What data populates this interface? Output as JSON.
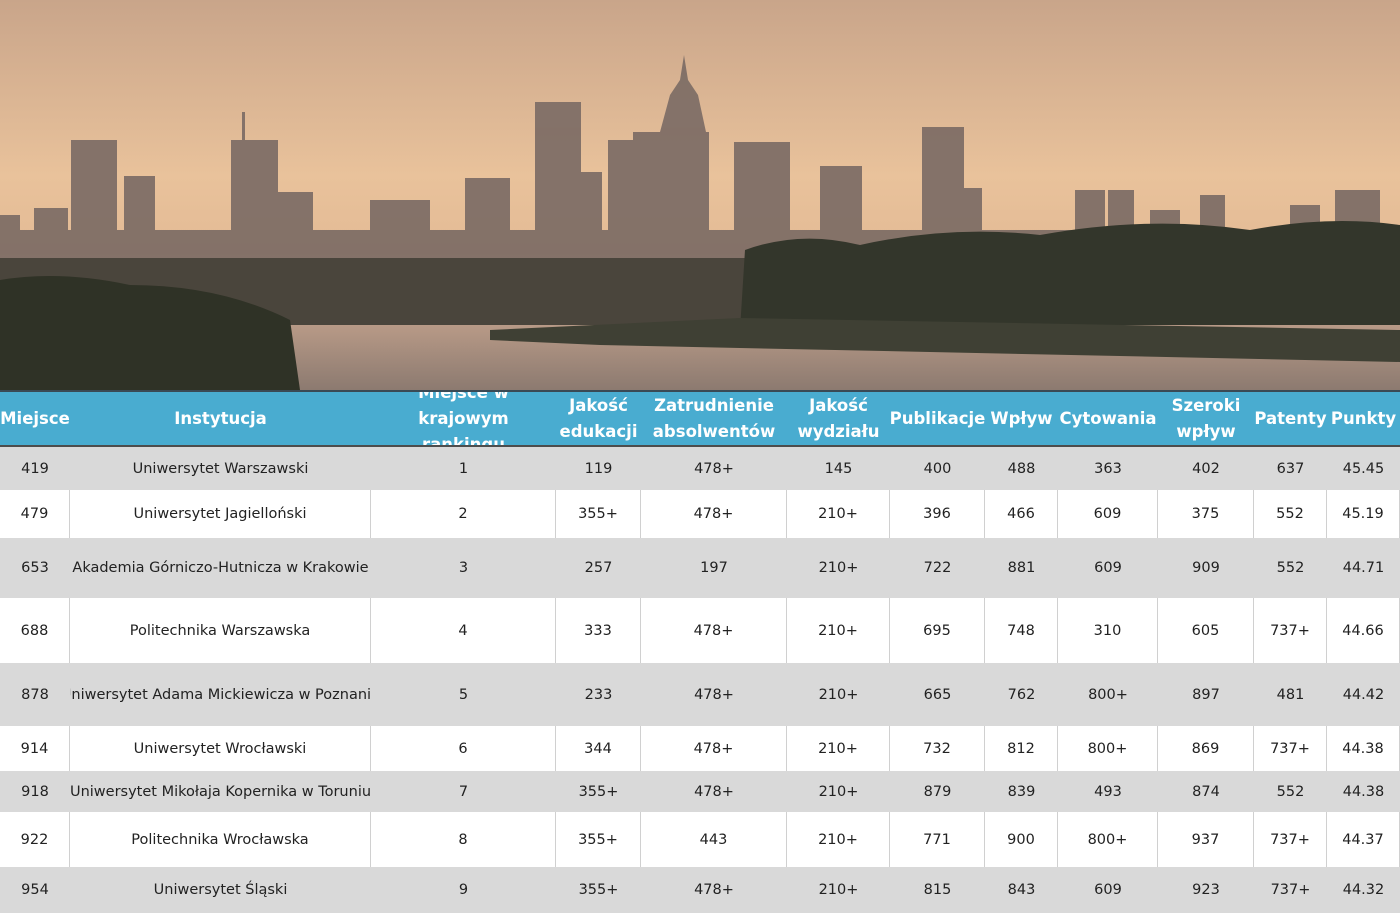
{
  "table": {
    "header": [
      "Miejsce",
      "Instytucja",
      "Miejsce w krajowym rankingu",
      "Jakość edukacji",
      "Zatrudnienie absolwentów",
      "Jakość wydziału",
      "Publikacje",
      "Wpływ",
      "Cytowania",
      "Szeroki wpływ",
      "Patenty",
      "Punkty"
    ],
    "rows": [
      [
        "419",
        "Uniwersytet Warszawski",
        "1",
        "119",
        "478+",
        "145",
        "400",
        "488",
        "363",
        "402",
        "637",
        "45.45"
      ],
      [
        "479",
        "Uniwersytet Jagielloński",
        "2",
        "355+",
        "478+",
        "210+",
        "396",
        "466",
        "609",
        "375",
        "552",
        "45.19"
      ],
      [
        "653",
        "Akademia Górniczo-Hutnicza w Krakowie",
        "3",
        "257",
        "197",
        "210+",
        "722",
        "881",
        "609",
        "909",
        "552",
        "44.71"
      ],
      [
        "688",
        "Politechnika Warszawska",
        "4",
        "333",
        "478+",
        "210+",
        "695",
        "748",
        "310",
        "605",
        "737+",
        "44.66"
      ],
      [
        "878",
        "Uniwersytet Adama Mickiewicza w Poznaniu",
        "5",
        "233",
        "478+",
        "210+",
        "665",
        "762",
        "800+",
        "897",
        "481",
        "44.42"
      ],
      [
        "914",
        "Uniwersytet Wrocławski",
        "6",
        "344",
        "478+",
        "210+",
        "732",
        "812",
        "800+",
        "869",
        "737+",
        "44.38"
      ],
      [
        "918",
        "Uniwersytet Mikołaja Kopernika w Toruniu",
        "7",
        "355+",
        "478+",
        "210+",
        "879",
        "839",
        "493",
        "874",
        "552",
        "44.38"
      ],
      [
        "922",
        "Politechnika Wrocławska",
        "8",
        "355+",
        "443",
        "210+",
        "771",
        "900",
        "800+",
        "937",
        "737+",
        "44.37"
      ],
      [
        "954",
        "Uniwersytet Śląski",
        "9",
        "355+",
        "478+",
        "210+",
        "815",
        "843",
        "609",
        "923",
        "737+",
        "44.32"
      ]
    ]
  }
}
